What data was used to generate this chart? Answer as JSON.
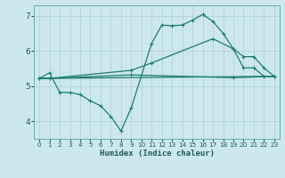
{
  "xlabel": "Humidex (Indice chaleur)",
  "background_color": "#cce8ec",
  "grid_color": "#aecfd4",
  "line_color": "#1e7b72",
  "xlim": [
    -0.5,
    23.5
  ],
  "ylim": [
    3.5,
    7.3
  ],
  "yticks": [
    4,
    5,
    6,
    7
  ],
  "xticks": [
    0,
    1,
    2,
    3,
    4,
    5,
    6,
    7,
    8,
    9,
    10,
    11,
    12,
    13,
    14,
    15,
    16,
    17,
    18,
    19,
    20,
    21,
    22,
    23
  ],
  "series": {
    "line1_x": [
      0,
      1,
      2,
      3,
      4,
      5,
      6,
      7,
      8,
      9,
      11,
      12,
      13,
      14,
      15,
      16,
      17,
      18,
      19,
      20,
      21,
      22,
      23
    ],
    "line1_y": [
      5.22,
      5.38,
      4.82,
      4.82,
      4.76,
      4.58,
      4.44,
      4.14,
      3.72,
      4.38,
      6.22,
      6.74,
      6.72,
      6.74,
      6.88,
      7.04,
      6.84,
      6.5,
      6.06,
      5.52,
      5.52,
      5.28,
      5.28
    ],
    "line2_x": [
      0,
      23
    ],
    "line2_y": [
      5.22,
      5.28
    ],
    "line3_x": [
      0,
      1,
      9,
      11,
      17,
      19,
      20,
      21,
      22,
      23
    ],
    "line3_y": [
      5.22,
      5.22,
      5.45,
      5.66,
      6.35,
      6.06,
      5.84,
      5.84,
      5.52,
      5.28
    ],
    "line4_x": [
      0,
      1,
      9,
      19,
      23
    ],
    "line4_y": [
      5.22,
      5.22,
      5.32,
      5.24,
      5.28
    ]
  }
}
